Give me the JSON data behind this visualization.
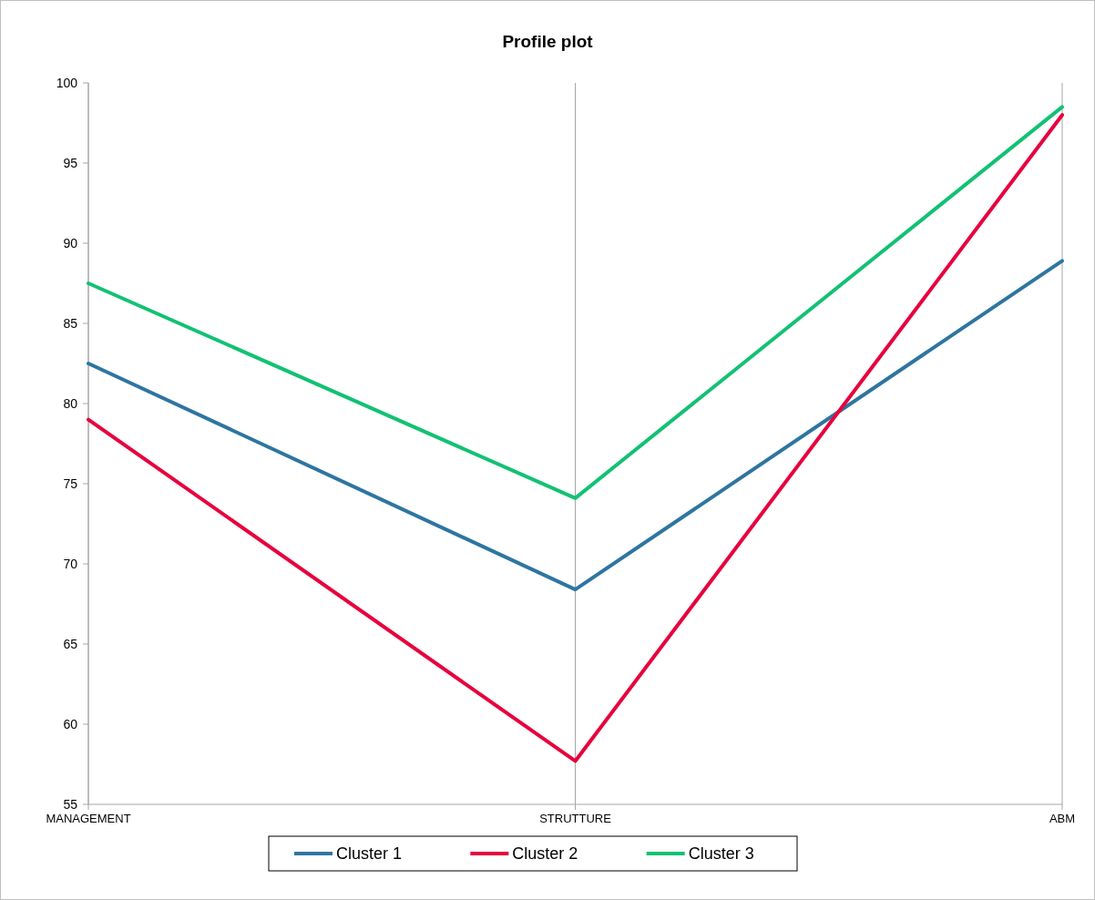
{
  "chart_data": {
    "type": "line",
    "title": "Profile plot",
    "categories": [
      "MANAGEMENT",
      "STRUTTURE",
      "ABM"
    ],
    "series": [
      {
        "name": "Cluster 1",
        "color": "#2e75a0",
        "values": [
          82.5,
          68.4,
          88.9
        ]
      },
      {
        "name": "Cluster 2",
        "color": "#e8003d",
        "values": [
          79.0,
          57.7,
          98.0
        ]
      },
      {
        "name": "Cluster 3",
        "color": "#12c173",
        "values": [
          87.5,
          74.1,
          98.5
        ]
      }
    ],
    "ylim": [
      55,
      100
    ],
    "yticks": [
      55,
      60,
      65,
      70,
      75,
      80,
      85,
      90,
      95,
      100
    ],
    "grid": "x",
    "legend": "bottom",
    "marker": "none",
    "line_style": "solid"
  }
}
